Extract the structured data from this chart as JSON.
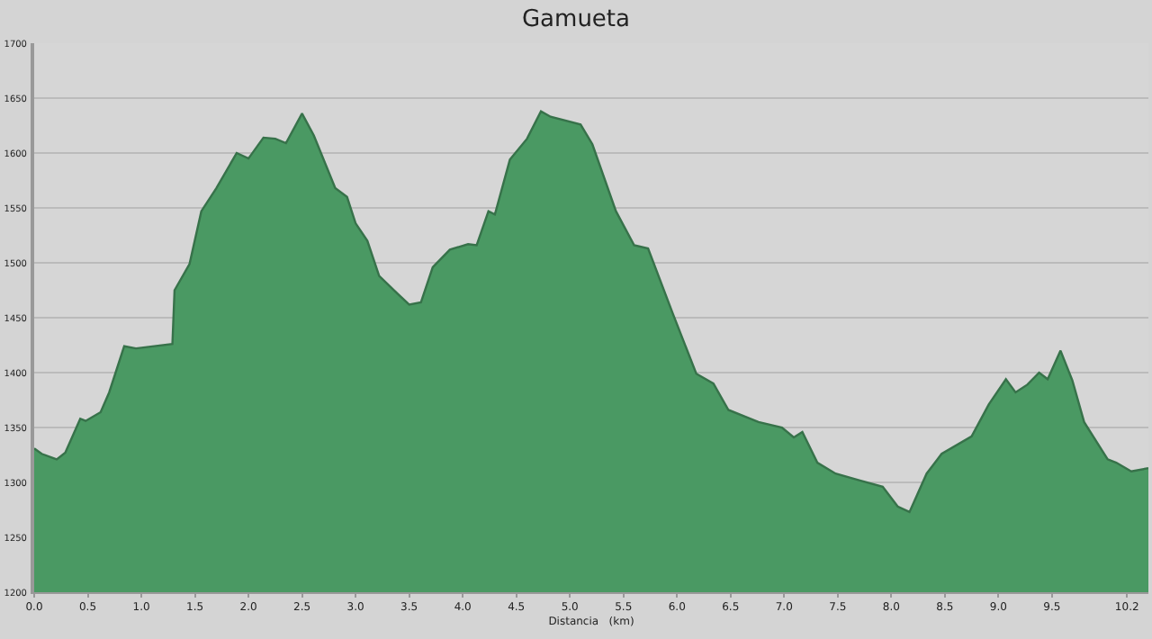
{
  "chart_data": {
    "type": "area",
    "title": "Gamueta",
    "xlabel": "Distancia   (km)",
    "x": [
      0,
      0.07,
      0.21,
      0.29,
      0.43,
      0.48,
      0.62,
      0.7,
      0.84,
      0.95,
      1.29,
      1.31,
      1.45,
      1.56,
      1.7,
      1.89,
      2.0,
      2.14,
      2.25,
      2.35,
      2.5,
      2.61,
      2.81,
      2.92,
      3.0,
      3.11,
      3.22,
      3.39,
      3.5,
      3.61,
      3.72,
      3.88,
      4.05,
      4.13,
      4.24,
      4.3,
      4.44,
      4.6,
      4.73,
      4.82,
      5.1,
      5.21,
      5.43,
      5.6,
      5.73,
      5.96,
      6.18,
      6.34,
      6.48,
      6.76,
      6.98,
      7.09,
      7.17,
      7.31,
      7.48,
      7.7,
      7.92,
      8.06,
      8.17,
      8.33,
      8.47,
      8.75,
      8.91,
      9.07,
      9.16,
      9.27,
      9.38,
      9.46,
      9.58,
      9.69,
      9.8,
      10.02,
      10.1,
      10.24,
      10.4
    ],
    "series": [
      {
        "color": "#4a9963",
        "values": [
          1331,
          1326,
          1321,
          1327,
          1358,
          1356,
          1364,
          1382,
          1424,
          1422,
          1426,
          1475,
          1499,
          1547,
          1568,
          1600,
          1595,
          1614,
          1613,
          1609,
          1636,
          1616,
          1568,
          1560,
          1536,
          1520,
          1488,
          1472,
          1462,
          1464,
          1496,
          1512,
          1517,
          1516,
          1547,
          1544,
          1594,
          1613,
          1638,
          1633,
          1626,
          1608,
          1547,
          1516,
          1513,
          1454,
          1399,
          1390,
          1366,
          1355,
          1350,
          1341,
          1346,
          1318,
          1308,
          1302,
          1296,
          1278,
          1273,
          1308,
          1326,
          1342,
          1371,
          1394,
          1382,
          1389,
          1400,
          1394,
          1420,
          1393,
          1355,
          1321,
          1318,
          1310,
          1313
        ]
      }
    ],
    "xlim": [
      0,
      10.4
    ],
    "xticks": [
      {
        "value": 0,
        "label": "0.0"
      },
      0.5,
      {
        "value": 1,
        "label": "1.0"
      },
      1.5,
      {
        "value": 2,
        "label": "2.0"
      },
      2.5,
      {
        "value": 3,
        "label": "3.0"
      },
      3.5,
      {
        "value": 4,
        "label": "4.0"
      },
      4.5,
      {
        "value": 5,
        "label": "5.0"
      },
      5.5,
      {
        "value": 6,
        "label": "6.0"
      },
      6.5,
      {
        "value": 7,
        "label": "7.0"
      },
      7.5,
      {
        "value": 8,
        "label": "8.0"
      },
      8.5,
      {
        "value": 9,
        "label": "9.0"
      },
      9.5,
      10.2
    ],
    "ylim": [
      1200,
      1700
    ],
    "yticks": [
      1200,
      1250,
      1300,
      1350,
      1400,
      1450,
      1500,
      1550,
      1600,
      1650,
      1700
    ],
    "grid": "y",
    "legend": false
  }
}
